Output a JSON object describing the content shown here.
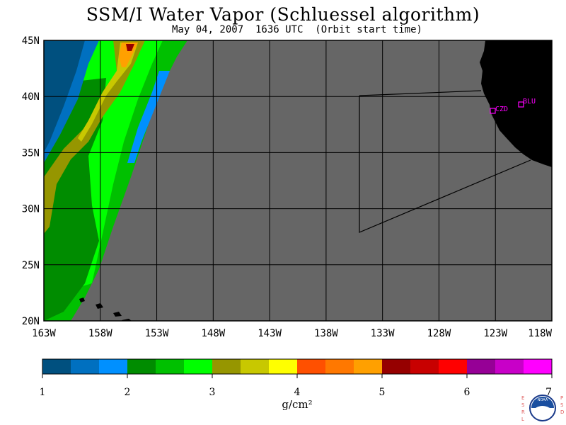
{
  "title": "SSM/I Water Vapor (Schluessel algorithm)",
  "subtitle": "May 04, 2007  1636 UTC  (Orbit start time)",
  "map": {
    "lat_labels": [
      "45N",
      "40N",
      "35N",
      "30N",
      "25N",
      "20N"
    ],
    "lon_labels": [
      "163W",
      "158W",
      "153W",
      "148W",
      "143W",
      "138W",
      "133W",
      "128W",
      "123W",
      "118W"
    ],
    "stations": [
      {
        "id": "CZD",
        "lon": -123.1,
        "lat": 38.6
      },
      {
        "id": "BLU",
        "lon": -120.7,
        "lat": 39.3
      }
    ],
    "colors": {
      "no_data": "#666666",
      "land": "#000000",
      "grid": "#000000",
      "station": "#ff00ff"
    }
  },
  "colorbar": {
    "colors": [
      "#00507f",
      "#0070c0",
      "#0090ff",
      "#008c00",
      "#00c000",
      "#00ff00",
      "#969600",
      "#c8c800",
      "#ffff00",
      "#ff5000",
      "#ff7800",
      "#ffa000",
      "#960000",
      "#c80000",
      "#ff0000",
      "#960096",
      "#c800c8",
      "#ff00ff"
    ],
    "tick_labels": [
      "1",
      "2",
      "3",
      "4",
      "5",
      "6",
      "7"
    ],
    "unit": "g/cm²"
  },
  "logo": {
    "left_text": "ESRL",
    "right_text": "PSD",
    "center_text": "NOAA"
  }
}
